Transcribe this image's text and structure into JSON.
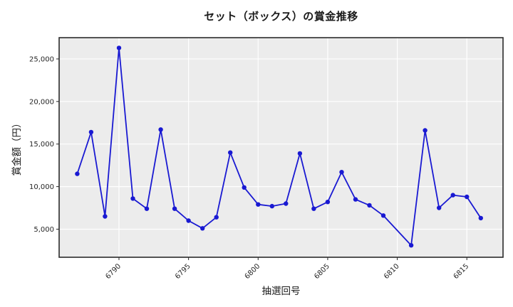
{
  "chart_data": {
    "type": "line",
    "title": "セット（ボックス）の賞金推移",
    "xlabel": "抽選回号",
    "ylabel": "賞金額（円）",
    "x": [
      6787,
      6788,
      6789,
      6790,
      6791,
      6792,
      6793,
      6794,
      6795,
      6796,
      6797,
      6798,
      6799,
      6800,
      6801,
      6802,
      6803,
      6804,
      6805,
      6806,
      6807,
      6808,
      6809,
      6811,
      6812,
      6813,
      6814,
      6815,
      6816
    ],
    "values": [
      11500,
      16400,
      6500,
      26300,
      8600,
      7400,
      16700,
      7400,
      6000,
      5100,
      6400,
      14000,
      9900,
      7900,
      7700,
      8000,
      13900,
      7400,
      8200,
      11700,
      8500,
      7800,
      6600,
      3100,
      16600,
      7500,
      9000,
      8800,
      6300
    ],
    "x_ticks": [
      6790,
      6795,
      6800,
      6805,
      6810,
      6815
    ],
    "y_ticks": [
      5000,
      10000,
      15000,
      20000,
      25000
    ],
    "xlim": [
      6785.7,
      6817.6
    ],
    "ylim": [
      1700,
      27500
    ],
    "grid": "on",
    "legend": "none",
    "line_color": "#1919d2",
    "marker_color": "#1919d2",
    "plot_bg": "#ececec",
    "grid_color": "#ffffff",
    "frame_color": "#2b2b2b",
    "tick_label_color": "#262626"
  }
}
